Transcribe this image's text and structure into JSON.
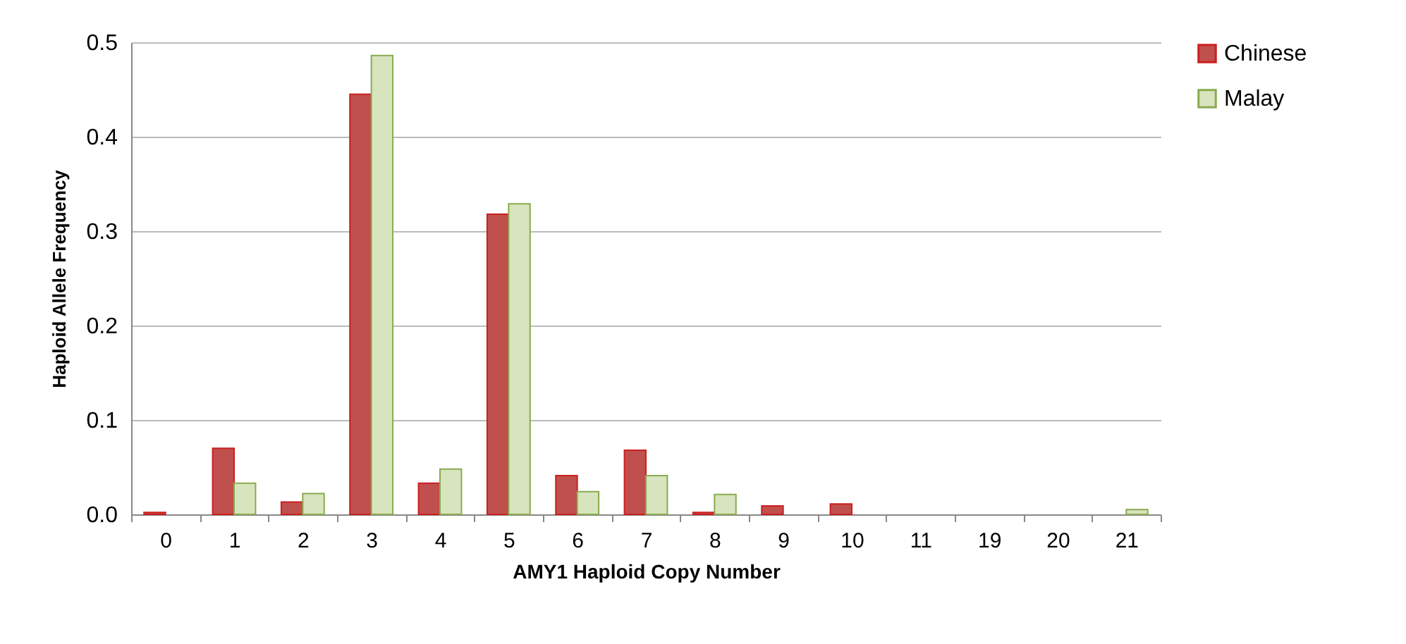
{
  "chart_data": {
    "type": "bar",
    "xlabel": "AMY1 Haploid Copy Number",
    "ylabel": "Haploid Allele Frequency",
    "categories": [
      "0",
      "1",
      "2",
      "3",
      "4",
      "5",
      "6",
      "7",
      "8",
      "9",
      "10",
      "11",
      "19",
      "20",
      "21"
    ],
    "series": [
      {
        "name": "Chinese",
        "color": "#c0504d",
        "values": [
          0.002,
          0.07,
          0.013,
          0.445,
          0.033,
          0.318,
          0.041,
          0.068,
          0.002,
          0.009,
          0.011,
          null,
          null,
          null,
          null
        ]
      },
      {
        "name": "Malay",
        "color": "#d7e4bd",
        "values": [
          null,
          0.033,
          0.022,
          0.486,
          0.048,
          0.329,
          0.024,
          0.041,
          0.021,
          null,
          null,
          null,
          null,
          null,
          0.005
        ]
      }
    ],
    "ylim": [
      0,
      0.5
    ],
    "yticks": [
      {
        "value": 0,
        "label": "0.0"
      },
      0.1,
      0.2,
      0.3,
      0.4,
      0.5
    ],
    "grid": "y",
    "legend": "right"
  }
}
